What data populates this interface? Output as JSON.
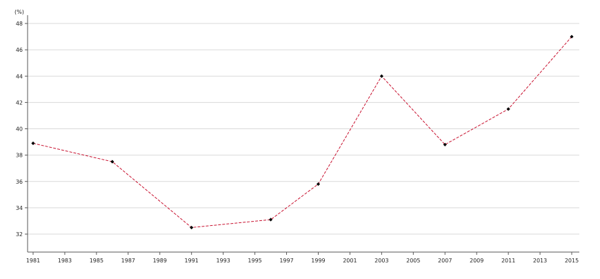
{
  "chart_data": {
    "type": "line",
    "title": "",
    "unit_label": "(%)",
    "xlabel": "",
    "ylabel": "",
    "xlim": [
      1981,
      2015
    ],
    "ylim": [
      31,
      48
    ],
    "x_ticks": [
      1981,
      1983,
      1985,
      1987,
      1989,
      1991,
      1993,
      1995,
      1997,
      1999,
      2001,
      2003,
      2005,
      2007,
      2009,
      2011,
      2013,
      2015
    ],
    "y_ticks": [
      32,
      34,
      36,
      38,
      40,
      42,
      44,
      46,
      48
    ],
    "grid": "horizontal",
    "series": [
      {
        "x": [
          1981,
          1986,
          1991,
          1996,
          1999,
          2003,
          2007,
          2011,
          2015
        ],
        "y": [
          38.9,
          37.5,
          32.5,
          33.1,
          35.8,
          44.0,
          38.8,
          41.5,
          47.0
        ],
        "color": "#c8102e",
        "marker_color": "#000000"
      }
    ]
  }
}
